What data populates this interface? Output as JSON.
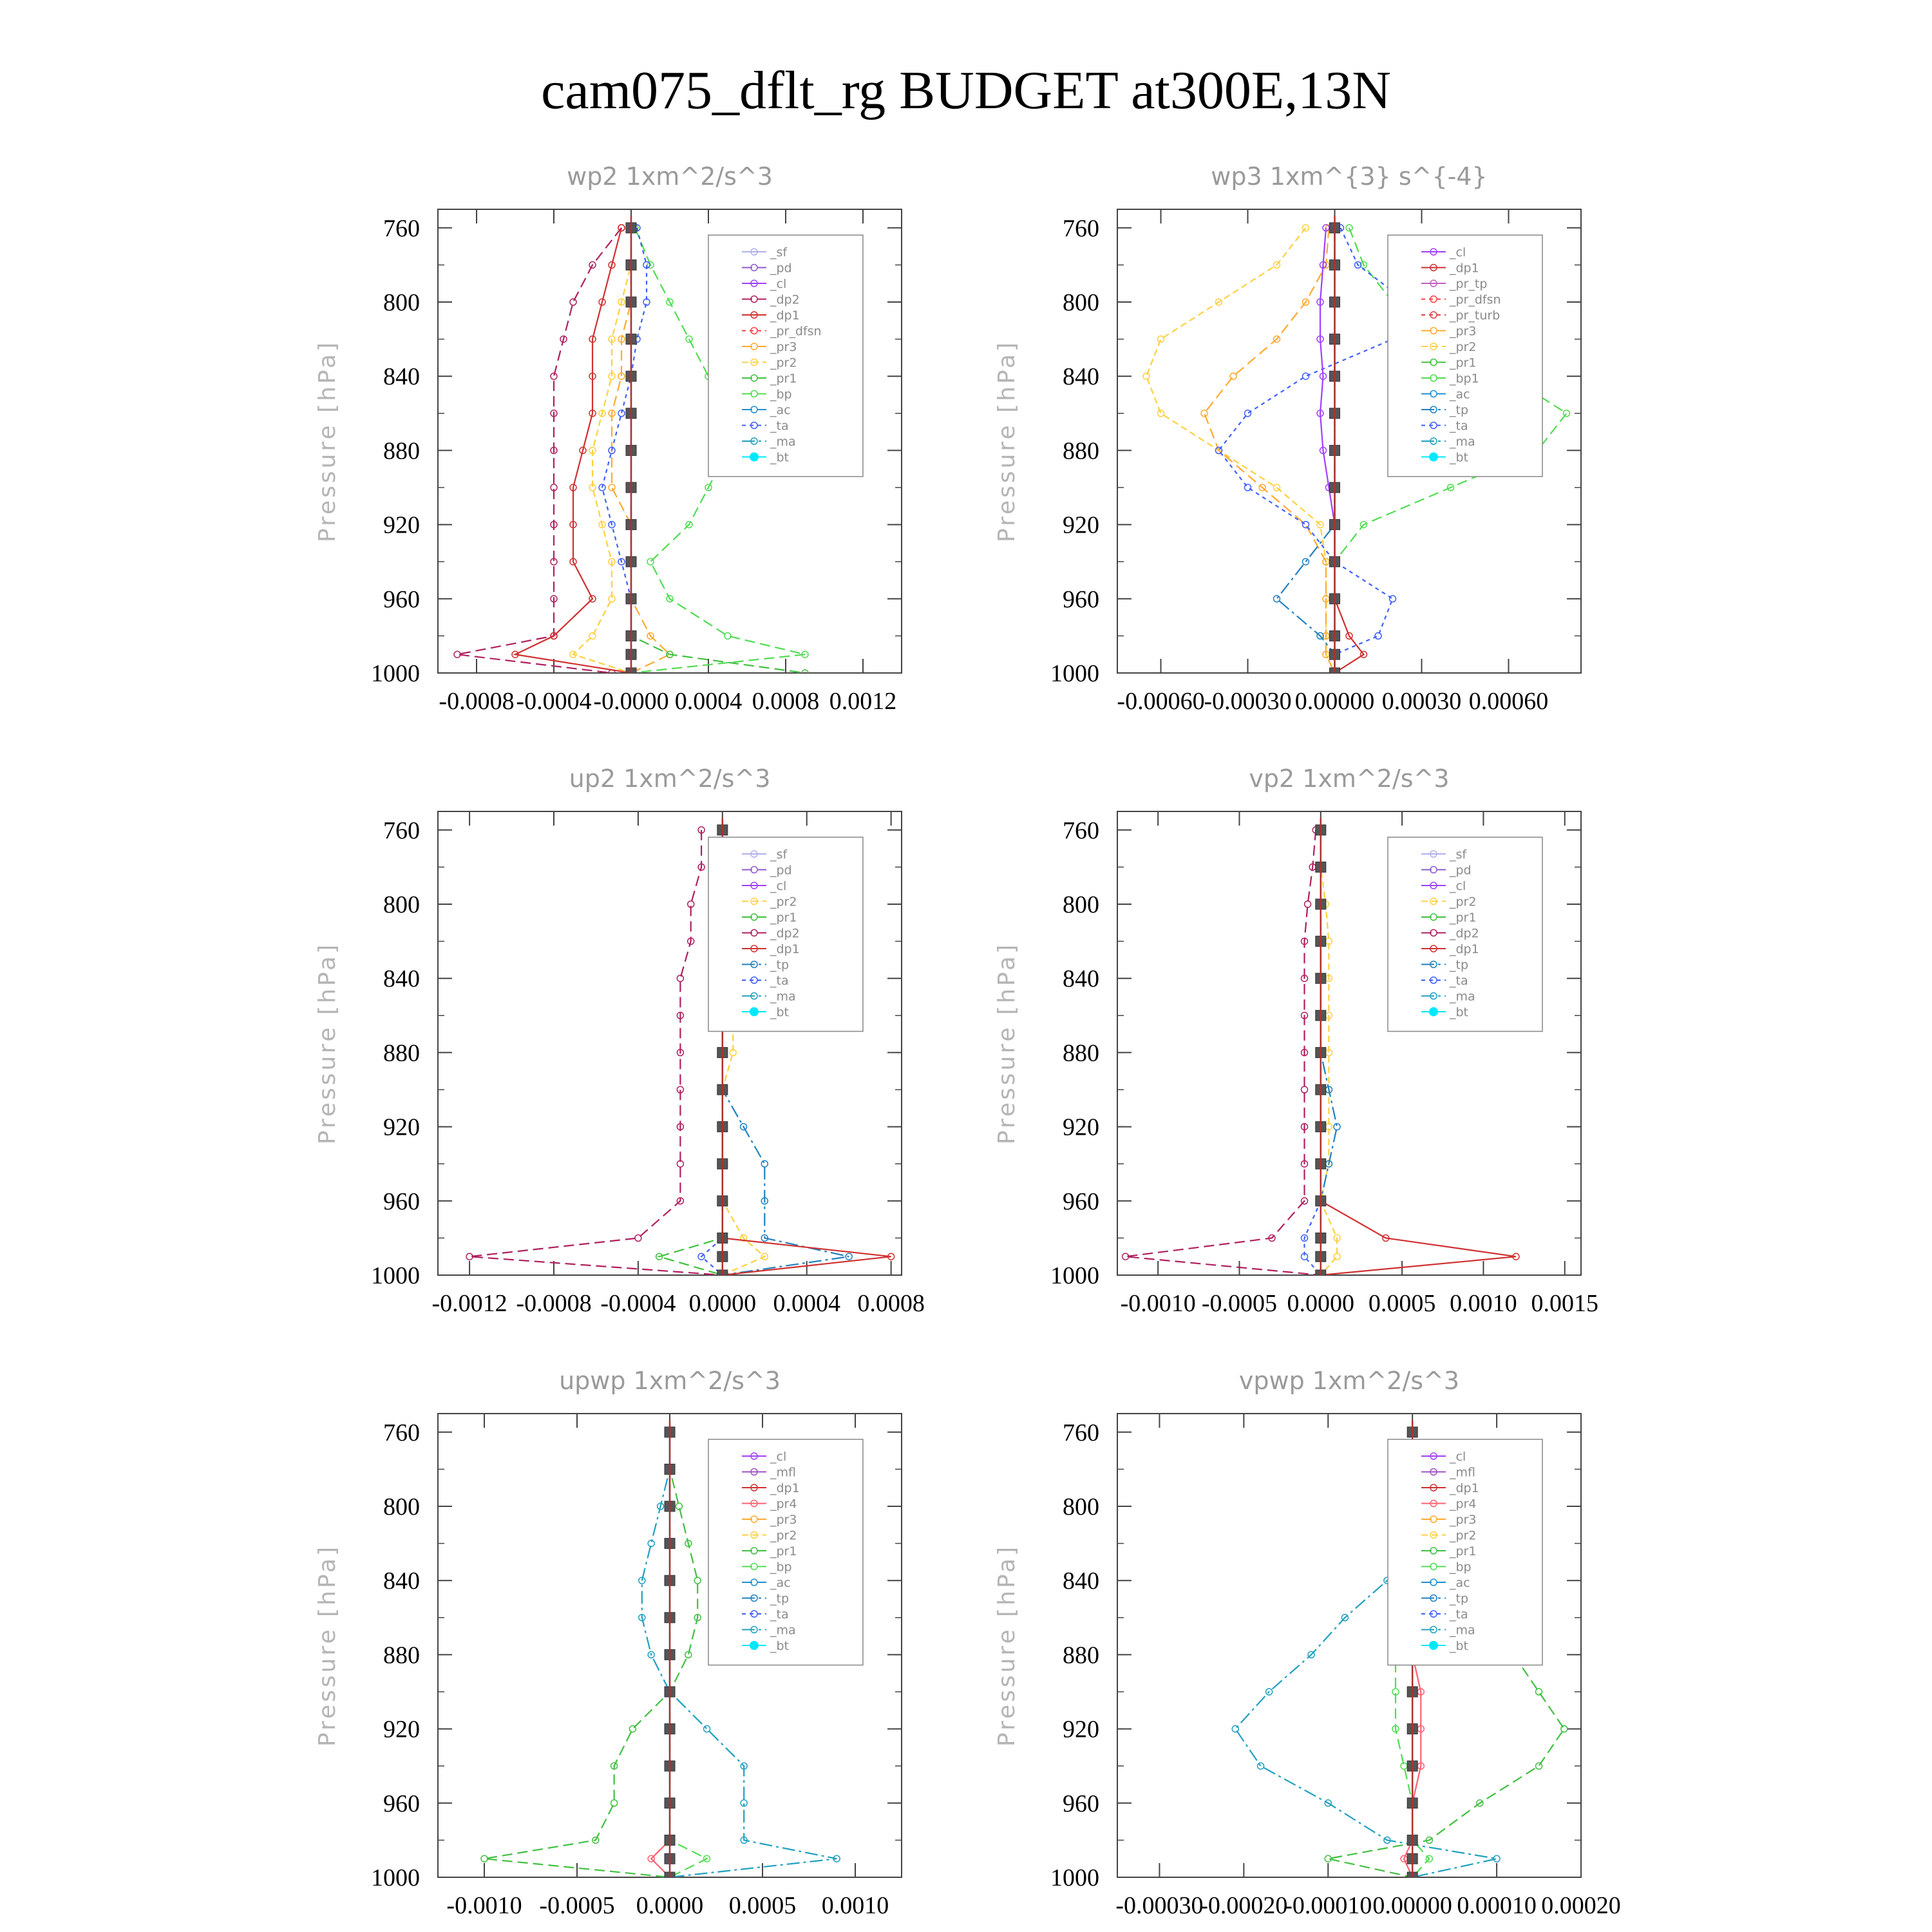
{
  "title": "cam075_dflt_rg  BUDGET at300E,13N",
  "colors": {
    "_sf": "#b0b0ee",
    "_pd": "#8e5bd0",
    "_cl": "#a040ff",
    "_dp2": "#b02060",
    "_dp1": "#d03030",
    "_pr_dfsn": "#ff4040",
    "_pr_tp": "#c060c0",
    "_pr_turb": "#e04040",
    "_pr3": "#ffaa30",
    "_pr2": "#ffd040",
    "_pr1": "#40c040",
    "_bp": "#50dd50",
    "_ac": "#2090d0",
    "_tp": "#2080c0",
    "_ta": "#4060ff",
    "_ma": "#20a0c0",
    "_bt": "#00e8ff",
    "_mfl": "#a050c0",
    "_pr4": "#ff6070"
  },
  "chart_data": [
    {
      "type": "line",
      "title": "wp2   1xm^2/s^3",
      "ylabel": "Pressure [hPa]",
      "ylim": [
        1000,
        750
      ],
      "yticks": [
        "760",
        "800",
        "840",
        "880",
        "920",
        "960",
        "1000"
      ],
      "xlim": [
        -0.001,
        0.0014
      ],
      "xticks": [
        "-0.0008",
        "-0.0004",
        "-0.0000",
        "0.0004",
        "0.0008",
        "0.0012"
      ],
      "pressure": [
        760,
        780,
        800,
        820,
        840,
        860,
        880,
        900,
        920,
        940,
        960,
        980,
        990,
        1000
      ],
      "legend": [
        "_sf",
        "_pd",
        "_cl",
        "_dp2",
        "_dp1",
        "_pr_dfsn",
        "_pr3",
        "_pr2",
        "_pr1",
        "_bp",
        "_ac",
        "_ta",
        "_ma",
        "_bt"
      ],
      "series": [
        {
          "name": "_dp2",
          "values": [
            -5e-05,
            -0.0002,
            -0.0003,
            -0.00035,
            -0.0004,
            -0.0004,
            -0.0004,
            -0.0004,
            -0.0004,
            -0.0004,
            -0.0004,
            -0.0004,
            -0.0009,
            -0.0001
          ]
        },
        {
          "name": "_dp1",
          "values": [
            -5e-05,
            -0.0001,
            -0.00015,
            -0.0002,
            -0.0002,
            -0.0002,
            -0.00025,
            -0.0003,
            -0.0003,
            -0.0003,
            -0.0002,
            -0.0004,
            -0.0006,
            0.0
          ]
        },
        {
          "name": "_pr2",
          "values": [
            0.0,
            0.0,
            -5e-05,
            -0.0001,
            -0.0001,
            -0.00015,
            -0.0002,
            -0.0002,
            -0.00015,
            -0.0001,
            -0.0001,
            -0.0002,
            -0.0003,
            0.0
          ]
        },
        {
          "name": "_pr3",
          "values": [
            0.0,
            0.0,
            0.0,
            -5e-05,
            -5e-05,
            -0.0001,
            -0.0001,
            -0.0001,
            0.0,
            0.0,
            0.0,
            0.0001,
            0.0002,
            0.0
          ]
        },
        {
          "name": "_bp",
          "values": [
            2e-05,
            0.0001,
            0.0002,
            0.0003,
            0.0004,
            0.0005,
            0.0005,
            0.0004,
            0.0003,
            0.0001,
            0.0002,
            0.0005,
            0.0009,
            0.0
          ]
        },
        {
          "name": "_pr1",
          "values": [
            0.0,
            0.0,
            0.0,
            0.0,
            0.0,
            0.0,
            0.0,
            0.0,
            0.0,
            0.0,
            0.0,
            0.0,
            0.0002,
            0.0009
          ]
        },
        {
          "name": "_ta",
          "values": [
            3e-05,
            8e-05,
            8e-05,
            3e-05,
            0.0,
            -5e-05,
            -0.0001,
            -0.00015,
            -0.0001,
            -5e-05,
            0.0,
            0.0,
            0.0,
            0.0
          ]
        },
        {
          "name": "_ma",
          "values": [
            0.0,
            0.0,
            0.0,
            0.0,
            0.0,
            0.0,
            0.0,
            0.0,
            0.0,
            0.0,
            0.0,
            0.0,
            0.0,
            0.0
          ]
        },
        {
          "name": "_bt",
          "values": [
            0.0,
            0.0,
            0.0,
            0.0,
            0.0,
            0.0,
            0.0,
            0.0,
            0.0,
            0.0,
            0.0,
            0.0,
            0.0,
            0.0
          ]
        }
      ]
    },
    {
      "type": "line",
      "title": "wp3   1xm^{3} s^{-4}",
      "ylabel": "Pressure [hPa]",
      "ylim": [
        1000,
        750
      ],
      "yticks": [
        "760",
        "800",
        "840",
        "880",
        "920",
        "960",
        "1000"
      ],
      "xlim": [
        -0.00075,
        0.00085
      ],
      "xticks": [
        "-0.00060",
        "-0.00030",
        "0.00000",
        "0.00030",
        "0.00060"
      ],
      "pressure": [
        760,
        780,
        800,
        820,
        840,
        860,
        880,
        900,
        920,
        940,
        960,
        980,
        990,
        1000
      ],
      "legend": [
        "_cl",
        "_dp1",
        "_pr_tp",
        "_pr_dfsn",
        "_pr_turb",
        "_pr3",
        "_pr2",
        "_pr1",
        "_bp1",
        "_ac",
        "_tp",
        "_ta",
        "_ma",
        "_bt"
      ],
      "series": [
        {
          "name": "_pr2",
          "values": [
            -0.0001,
            -0.0002,
            -0.0004,
            -0.0006,
            -0.00065,
            -0.0006,
            -0.0004,
            -0.0002,
            -5e-05,
            -3e-05,
            -3e-05,
            -3e-05,
            -3e-05,
            0.0
          ]
        },
        {
          "name": "_pr3",
          "values": [
            -2e-05,
            -3e-05,
            -0.0001,
            -0.0002,
            -0.00035,
            -0.00045,
            -0.0004,
            -0.00025,
            -0.0001,
            -3e-05,
            -3e-05,
            -3e-05,
            -3e-05,
            0.0
          ]
        },
        {
          "name": "_bp1",
          "values": [
            5e-05,
            0.0001,
            0.0002,
            0.0004,
            0.0006,
            0.0008,
            0.0007,
            0.0004,
            0.0001,
            0.0,
            0.0,
            0.0,
            0.0,
            0.0
          ]
        },
        {
          "name": "_ta",
          "values": [
            2e-05,
            8e-05,
            0.00025,
            0.0002,
            -0.0001,
            -0.0003,
            -0.0004,
            -0.0003,
            -0.0001,
            0.0,
            0.0002,
            0.00015,
            0.0,
            0.0
          ]
        },
        {
          "name": "_cl",
          "values": [
            -3e-05,
            -4e-05,
            -5e-05,
            -5e-05,
            -4e-05,
            -5e-05,
            -4e-05,
            -2e-05,
            0.0,
            0.0,
            0.0,
            0.0,
            0.0,
            0.0
          ]
        },
        {
          "name": "_tp",
          "values": [
            0.0,
            0.0,
            0.0,
            0.0,
            0.0,
            0.0,
            0.0,
            0.0,
            0.0,
            -0.0001,
            -0.0002,
            -5e-05,
            0.0,
            0.0
          ]
        },
        {
          "name": "_dp1",
          "values": [
            0.0,
            0.0,
            0.0,
            0.0,
            0.0,
            0.0,
            0.0,
            0.0,
            0.0,
            0.0,
            0.0,
            5e-05,
            0.0001,
            0.0
          ]
        },
        {
          "name": "_bt",
          "values": [
            0.0,
            0.0,
            0.0,
            0.0,
            0.0,
            0.0,
            0.0,
            0.0,
            0.0,
            0.0,
            0.0,
            0.0,
            0.0,
            0.0
          ]
        }
      ]
    },
    {
      "type": "line",
      "title": "up2   1xm^2/s^3",
      "ylabel": "Pressure [hPa]",
      "ylim": [
        1000,
        750
      ],
      "yticks": [
        "760",
        "800",
        "840",
        "880",
        "920",
        "960",
        "1000"
      ],
      "xlim": [
        -0.00135,
        0.00085
      ],
      "xticks": [
        "-0.0012",
        "-0.0008",
        "-0.0004",
        "0.0000",
        "0.0004",
        "0.0008"
      ],
      "pressure": [
        760,
        780,
        800,
        820,
        840,
        860,
        880,
        900,
        920,
        940,
        960,
        980,
        990,
        1000
      ],
      "legend": [
        "_sf",
        "_pd",
        "_cl",
        "_pr2",
        "_pr1",
        "_dp2",
        "_dp1",
        "_tp",
        "_ta",
        "_ma",
        "_bt"
      ],
      "series": [
        {
          "name": "_dp2",
          "values": [
            -0.0001,
            -0.0001,
            -0.00015,
            -0.00015,
            -0.0002,
            -0.0002,
            -0.0002,
            -0.0002,
            -0.0002,
            -0.0002,
            -0.0002,
            -0.0004,
            -0.0012,
            0.0
          ]
        },
        {
          "name": "_tp",
          "values": [
            0.0,
            0.0,
            0.0,
            0.0,
            0.0,
            0.0,
            0.0,
            0.0,
            0.0001,
            0.0002,
            0.0002,
            0.0002,
            0.0006,
            0.0
          ]
        },
        {
          "name": "_pr2",
          "values": [
            0.0,
            0.0,
            5e-05,
            5e-05,
            5e-05,
            5e-05,
            5e-05,
            0.0,
            0.0,
            0.0,
            0.0,
            0.0001,
            0.0002,
            0.0
          ]
        },
        {
          "name": "_pr1",
          "values": [
            0.0,
            0.0,
            0.0,
            0.0,
            0.0,
            0.0,
            0.0,
            0.0,
            0.0,
            0.0,
            0.0,
            0.0,
            -0.0003,
            0.0
          ]
        },
        {
          "name": "_dp1",
          "values": [
            0.0,
            0.0,
            0.0,
            0.0,
            0.0,
            0.0,
            0.0,
            0.0,
            0.0,
            0.0,
            0.0,
            0.0,
            0.0008,
            0.0
          ]
        },
        {
          "name": "_ta",
          "values": [
            0.0,
            0.0,
            0.0,
            0.0,
            0.0,
            0.0,
            0.0,
            0.0,
            0.0,
            0.0,
            0.0,
            0.0,
            -0.0001,
            0.0
          ]
        },
        {
          "name": "_bt",
          "values": [
            0.0,
            0.0,
            0.0,
            0.0,
            0.0,
            0.0,
            0.0,
            0.0,
            0.0,
            0.0,
            0.0,
            0.0,
            0.0,
            0.0
          ]
        }
      ]
    },
    {
      "type": "line",
      "title": "vp2   1xm^2/s^3",
      "ylabel": "Pressure [hPa]",
      "ylim": [
        1000,
        750
      ],
      "yticks": [
        "760",
        "800",
        "840",
        "880",
        "920",
        "960",
        "1000"
      ],
      "xlim": [
        -0.00125,
        0.0016
      ],
      "xticks": [
        "-0.0010",
        "-0.0005",
        "0.0000",
        "0.0005",
        "0.0010",
        "0.0015"
      ],
      "pressure": [
        760,
        780,
        800,
        820,
        840,
        860,
        880,
        900,
        920,
        940,
        960,
        980,
        990,
        1000
      ],
      "legend": [
        "_sf",
        "_pd",
        "_cl",
        "_pr2",
        "_pr1",
        "_dp2",
        "_dp1",
        "_tp",
        "_ta",
        "_ma",
        "_bt"
      ],
      "series": [
        {
          "name": "_dp2",
          "values": [
            -3e-05,
            -5e-05,
            -8e-05,
            -0.0001,
            -0.0001,
            -0.0001,
            -0.0001,
            -0.0001,
            -0.0001,
            -0.0001,
            -0.0001,
            -0.0003,
            -0.0012,
            0.0
          ]
        },
        {
          "name": "_dp1",
          "values": [
            0.0,
            0.0,
            0.0,
            0.0,
            0.0,
            0.0,
            0.0,
            0.0,
            0.0,
            0.0,
            0.0,
            0.0004,
            0.0012,
            0.0
          ]
        },
        {
          "name": "_pr2",
          "values": [
            0.0,
            0.0,
            3e-05,
            5e-05,
            5e-05,
            5e-05,
            5e-05,
            5e-05,
            5e-05,
            5e-05,
            0.0,
            0.0001,
            0.0001,
            0.0
          ]
        },
        {
          "name": "_tp",
          "values": [
            0.0,
            0.0,
            0.0,
            0.0,
            0.0,
            0.0,
            0.0,
            5e-05,
            0.0001,
            5e-05,
            0.0,
            0.0,
            0.0,
            0.0
          ]
        },
        {
          "name": "_ta",
          "values": [
            0.0,
            0.0,
            0.0,
            0.0,
            0.0,
            0.0,
            0.0,
            0.0,
            0.0,
            0.0,
            0.0,
            -0.0001,
            -0.0001,
            0.0
          ]
        },
        {
          "name": "_bt",
          "values": [
            0.0,
            0.0,
            0.0,
            0.0,
            0.0,
            0.0,
            0.0,
            0.0,
            0.0,
            0.0,
            0.0,
            0.0,
            0.0,
            0.0
          ]
        }
      ]
    },
    {
      "type": "line",
      "title": "upwp   1xm^2/s^3",
      "ylabel": "Pressure [hPa]",
      "ylim": [
        1000,
        750
      ],
      "yticks": [
        "760",
        "800",
        "840",
        "880",
        "920",
        "960",
        "1000"
      ],
      "xlim": [
        -0.00125,
        0.00125
      ],
      "xticks": [
        "-0.0010",
        "-0.0005",
        "0.0000",
        "0.0005",
        "0.0010"
      ],
      "pressure": [
        760,
        780,
        800,
        820,
        840,
        860,
        880,
        900,
        920,
        940,
        960,
        980,
        990,
        1000
      ],
      "legend": [
        "_cl",
        "_mfl",
        "_dp1",
        "_pr4",
        "_pr3",
        "_pr2",
        "_pr1",
        "_bp",
        "_ac",
        "_tp",
        "_ta",
        "_ma",
        "_bt"
      ],
      "series": [
        {
          "name": "_pr1",
          "values": [
            0.0,
            0.0,
            5e-05,
            0.0001,
            0.00015,
            0.00015,
            0.0001,
            0.0,
            -0.0002,
            -0.0003,
            -0.0003,
            -0.0004,
            -0.001,
            0.0
          ]
        },
        {
          "name": "_ma",
          "values": [
            0.0,
            0.0,
            -5e-05,
            -0.0001,
            -0.00015,
            -0.00015,
            -0.0001,
            0.0,
            0.0002,
            0.0004,
            0.0004,
            0.0004,
            0.0009,
            0.0
          ]
        },
        {
          "name": "_pr4",
          "values": [
            0.0,
            0.0,
            0.0,
            0.0,
            0.0,
            0.0,
            0.0,
            0.0,
            0.0,
            0.0,
            0.0,
            0.0,
            -0.0001,
            0.0
          ]
        },
        {
          "name": "_bp",
          "values": [
            0.0,
            0.0,
            0.0,
            0.0,
            0.0,
            0.0,
            0.0,
            0.0,
            0.0,
            0.0,
            0.0,
            0.0,
            0.0002,
            0.0
          ]
        },
        {
          "name": "_bt",
          "values": [
            0.0,
            0.0,
            0.0,
            0.0,
            0.0,
            0.0,
            0.0,
            0.0,
            0.0,
            0.0,
            0.0,
            0.0,
            0.0,
            0.0
          ]
        }
      ]
    },
    {
      "type": "line",
      "title": "vpwp   1xm^2/s^3",
      "ylabel": "Pressure [hPa]",
      "ylim": [
        1000,
        750
      ],
      "yticks": [
        "760",
        "800",
        "840",
        "880",
        "920",
        "960",
        "1000"
      ],
      "xlim": [
        -0.00035,
        0.0002
      ],
      "xticks": [
        "-0.00030",
        "-0.00020",
        "-0.00010",
        "0.00000",
        "0.00010",
        "0.00020"
      ],
      "pressure": [
        760,
        780,
        800,
        820,
        840,
        860,
        880,
        900,
        920,
        940,
        960,
        980,
        990,
        1000
      ],
      "legend": [
        "_cl",
        "_mfl",
        "_dp1",
        "_pr4",
        "_pr3",
        "_pr2",
        "_pr1",
        "_bp",
        "_ac",
        "_tp",
        "_ta",
        "_ma",
        "_bt"
      ],
      "series": [
        {
          "name": "_pr1",
          "values": [
            0.0,
            0.0,
            0.0,
            0.0,
            3e-05,
            8e-05,
            0.00012,
            0.00015,
            0.00018,
            0.00015,
            8e-05,
            2e-05,
            -0.0001,
            0.0
          ]
        },
        {
          "name": "_ma",
          "values": [
            0.0,
            0.0,
            0.0,
            0.0,
            -3e-05,
            -8e-05,
            -0.00012,
            -0.00017,
            -0.00021,
            -0.00018,
            -0.0001,
            -3e-05,
            0.0001,
            0.0
          ]
        },
        {
          "name": "_bp",
          "values": [
            0.0,
            0.0,
            0.0,
            0.0,
            0.0,
            -1e-05,
            -2e-05,
            -2e-05,
            -2e-05,
            -1e-05,
            0.0,
            0.0,
            2e-05,
            0.0
          ]
        },
        {
          "name": "_pr4",
          "values": [
            0.0,
            0.0,
            0.0,
            0.0,
            0.0,
            0.0,
            0.0,
            1e-05,
            1e-05,
            1e-05,
            0.0,
            0.0,
            -1e-05,
            0.0
          ]
        },
        {
          "name": "_bt",
          "values": [
            0.0,
            0.0,
            0.0,
            0.0,
            0.0,
            0.0,
            0.0,
            0.0,
            0.0,
            0.0,
            0.0,
            0.0,
            0.0,
            0.0
          ]
        }
      ]
    }
  ]
}
